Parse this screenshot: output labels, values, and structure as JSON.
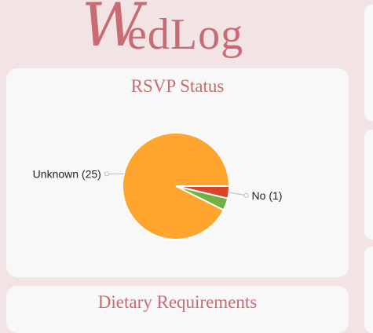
{
  "app": {
    "logo_initial": "W",
    "logo_rest": "edLog"
  },
  "cards": {
    "rsvp_title": "RSVP Status",
    "dietary_title": "Dietary Requirements"
  },
  "colors": {
    "accent": "#c96b74",
    "background": "#f2e4e4",
    "card": "#f8f8f8"
  },
  "chart_data": {
    "type": "pie",
    "title": "RSVP Status",
    "slices": [
      {
        "label": "Unknown (25)",
        "value": 25,
        "color": "#ffa52e",
        "show_label": true
      },
      {
        "label": "No (1)",
        "value": 1,
        "color": "#d9442b",
        "show_label": true
      },
      {
        "label": "",
        "value": 1,
        "color": "#72b043",
        "show_label": false
      }
    ],
    "legend": "none"
  }
}
